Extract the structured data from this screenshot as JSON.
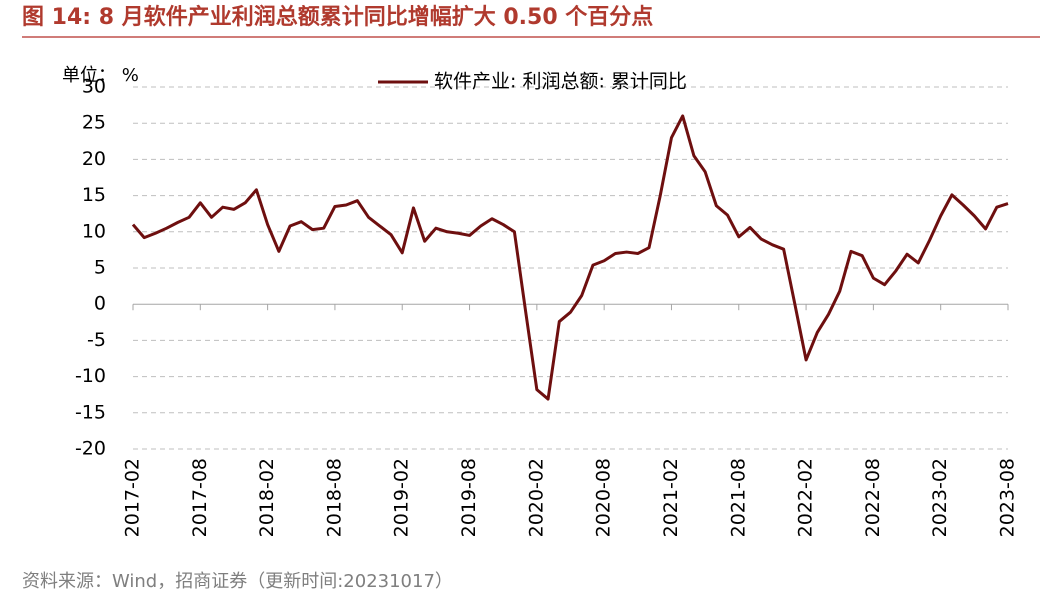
{
  "chart_data": {
    "type": "line",
    "title": "图 14:   8 月软件产业利润总额累计同比增幅扩大 0.50 个百分点",
    "unit_label": "单位：  %",
    "source": "资料来源：Wind，招商证券（更新时间:20231017）",
    "categories": [
      "2017-02",
      null,
      null,
      null,
      null,
      null,
      "2017-08",
      null,
      null,
      null,
      null,
      null,
      "2018-02",
      null,
      null,
      null,
      null,
      null,
      "2018-08",
      null,
      null,
      null,
      null,
      null,
      "2019-02",
      null,
      null,
      null,
      null,
      null,
      "2019-08",
      null,
      null,
      null,
      null,
      null,
      "2020-02",
      null,
      null,
      null,
      null,
      null,
      "2020-08",
      null,
      null,
      null,
      null,
      null,
      "2021-02",
      null,
      null,
      null,
      null,
      null,
      "2021-08",
      null,
      null,
      null,
      null,
      null,
      "2022-02",
      null,
      null,
      null,
      null,
      null,
      "2022-08",
      null,
      null,
      null,
      null,
      null,
      "2023-02",
      null,
      null,
      null,
      null,
      null,
      "2023-08"
    ],
    "series": [
      {
        "name": "软件产业: 利润总额: 累计同比",
        "color": "#6e0f0f",
        "values": [
          11,
          9.2,
          9.8,
          10.5,
          11.3,
          12,
          14,
          12,
          13.4,
          13.1,
          14,
          15.8,
          11,
          7.3,
          10.8,
          11.4,
          10.3,
          10.5,
          13.5,
          13.7,
          14.3,
          12,
          10.8,
          9.6,
          7.1,
          13.3,
          8.7,
          10.5,
          10,
          9.8,
          9.5,
          10.8,
          11.8,
          11,
          10,
          -1,
          -11.8,
          -13.1,
          -2.4,
          -1.1,
          1.2,
          5.4,
          6,
          7,
          7.2,
          7,
          7.8,
          15,
          23,
          26,
          20.5,
          18.3,
          13.6,
          12.3,
          9.3,
          10.6,
          9,
          8.2,
          7.6,
          0,
          -7.7,
          -3.9,
          -1.4,
          1.8,
          7.3,
          6.7,
          3.6,
          2.7,
          4.6,
          6.9,
          5.7,
          8.8,
          12.2,
          15.1,
          13.7,
          12.2,
          10.4,
          13.4,
          13.9
        ]
      }
    ],
    "ylim": [
      -20,
      30
    ],
    "yticks": [
      -20,
      -15,
      -10,
      -5,
      0,
      5,
      10,
      15,
      20,
      25,
      30
    ],
    "negative_tick_color": "#ff0000",
    "grid": true,
    "legend": "top"
  }
}
